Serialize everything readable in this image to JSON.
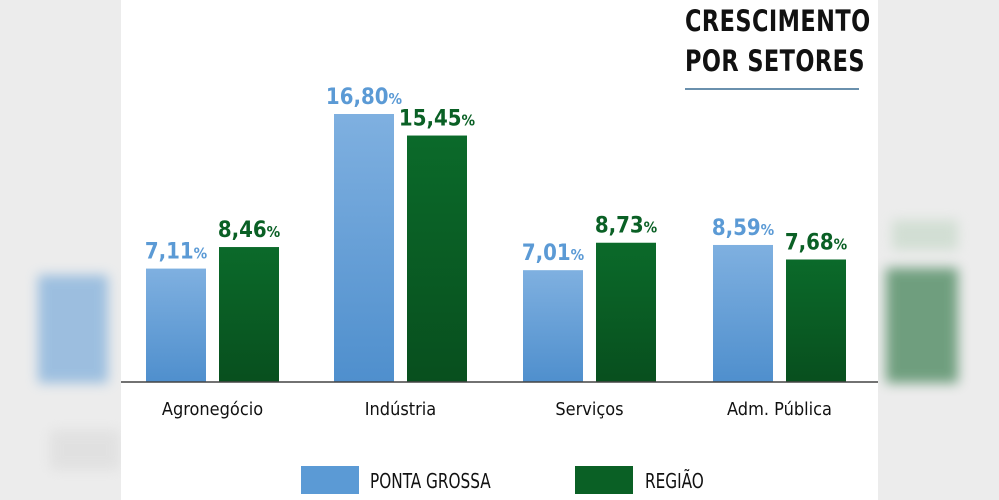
{
  "title": {
    "line1": "CRESCIMENTO",
    "line2": "POR SETORES"
  },
  "colors": {
    "ponta_grossa": "#5b9ad5",
    "regiao": "#0a6025",
    "ponta_grossa_label": "#5b9ad5",
    "regiao_label": "#0a6025"
  },
  "legend": {
    "ponta_grossa": "PONTA GROSSA",
    "regiao": "REGIÃO"
  },
  "chart_data": {
    "type": "bar",
    "title": "CRESCIMENTO POR SETORES",
    "categories": [
      "Agronegócio",
      "Indústria",
      "Serviços",
      "Adm. Pública"
    ],
    "series": [
      {
        "name": "PONTA GROSSA",
        "values": [
          7.11,
          16.8,
          7.01,
          8.59
        ],
        "labels": [
          "7,11%",
          "16,80%",
          "7,01%",
          "8,59%"
        ]
      },
      {
        "name": "REGIÃO",
        "values": [
          8.46,
          15.45,
          8.73,
          7.68
        ],
        "labels": [
          "8,46%",
          "15,45%",
          "8,73%",
          "7,68%"
        ]
      }
    ],
    "xlabel": "",
    "ylabel": "",
    "ylim": [
      0,
      16.8
    ],
    "grid": false,
    "legend_position": "bottom"
  }
}
